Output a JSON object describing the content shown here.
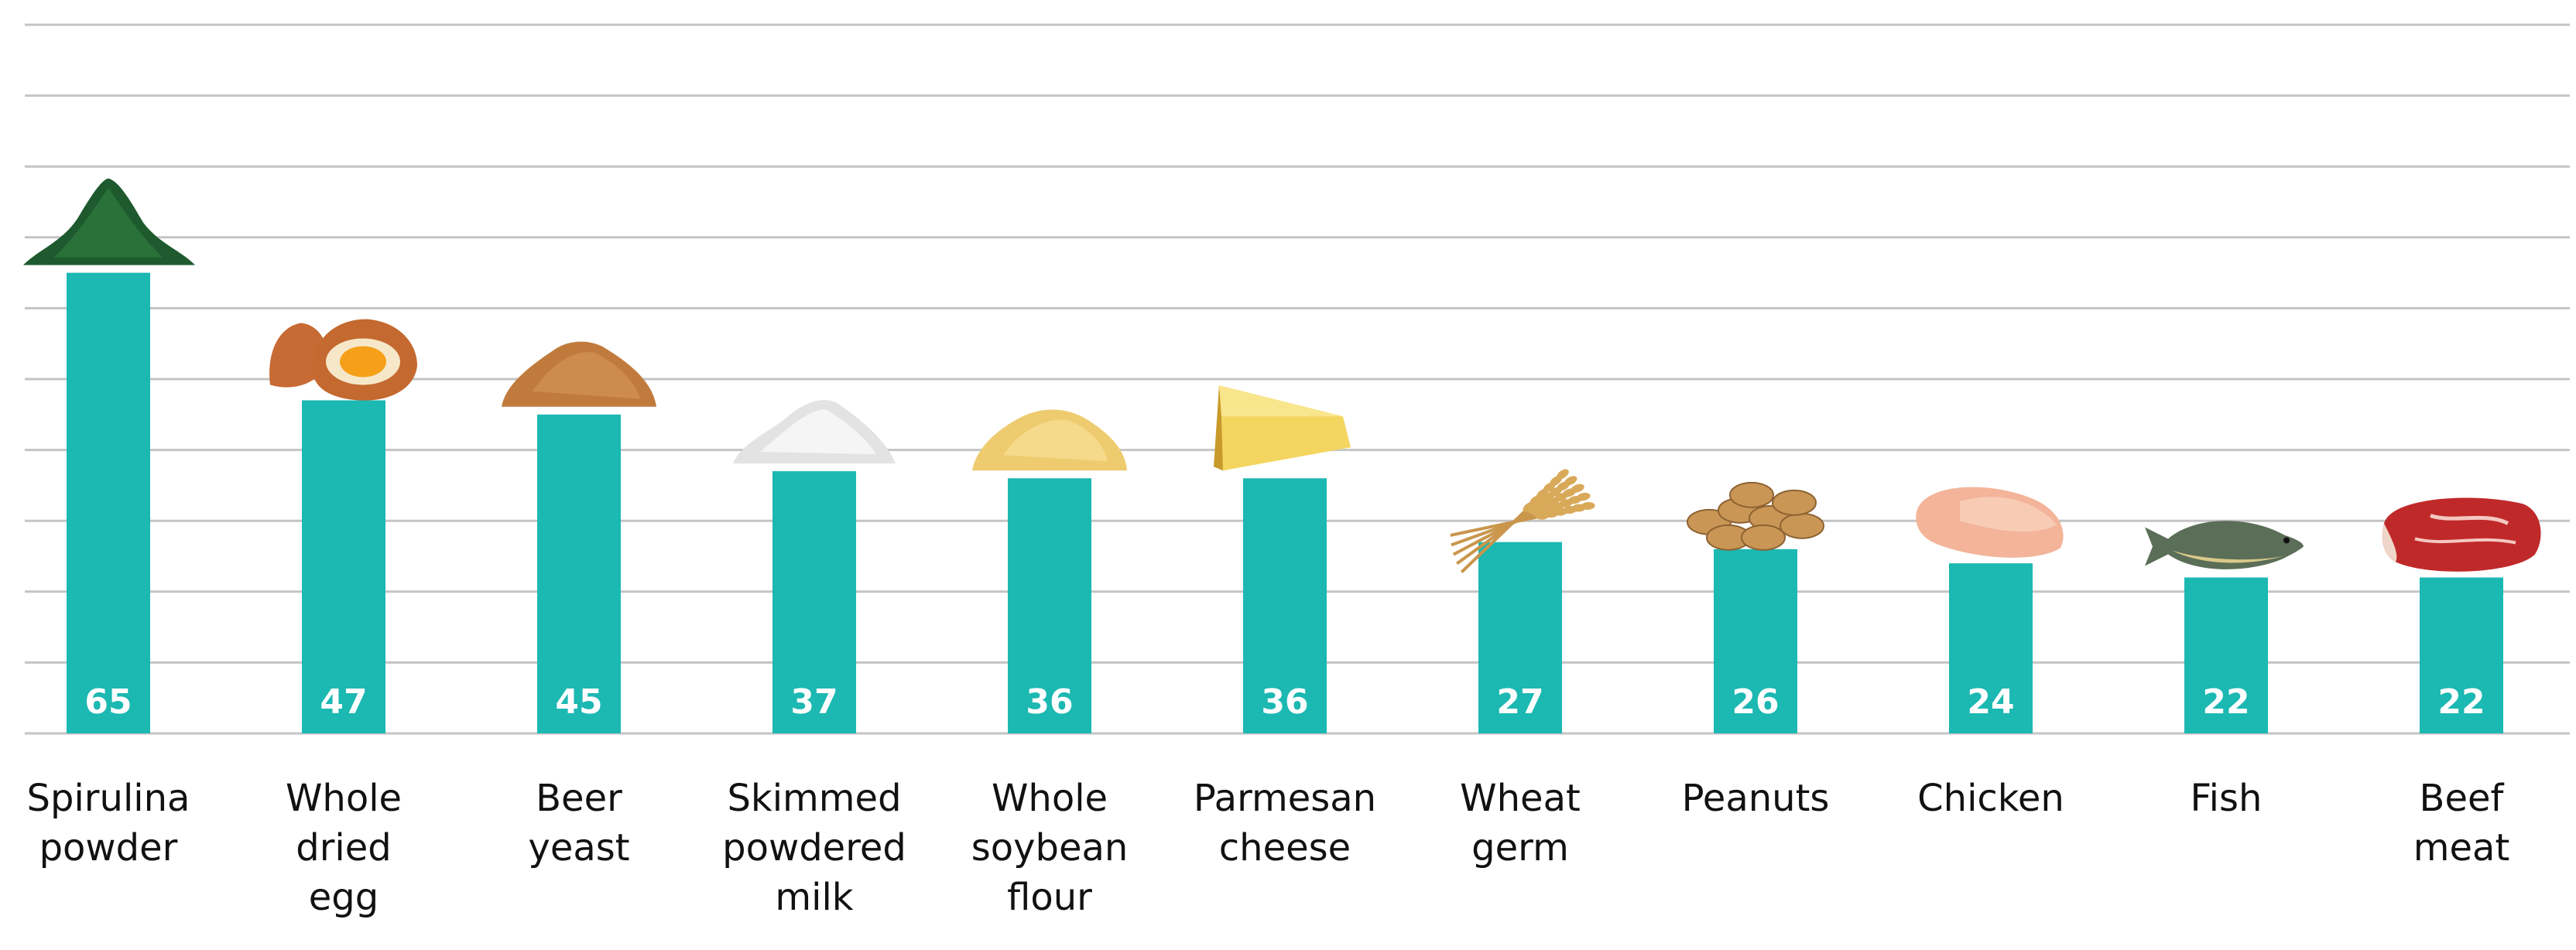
{
  "chart_data": {
    "type": "bar",
    "categories": [
      [
        "Spirulina",
        "powder"
      ],
      [
        "Whole",
        "dried",
        "egg"
      ],
      [
        "Beer",
        "yeast"
      ],
      [
        "Skimmed",
        "powdered",
        "milk"
      ],
      [
        "Whole",
        "soybean",
        "flour"
      ],
      [
        "Parmesan",
        "cheese"
      ],
      [
        "Wheat",
        "germ"
      ],
      [
        "Peanuts"
      ],
      [
        "Chicken"
      ],
      [
        "Fish"
      ],
      [
        "Beef",
        "meat"
      ]
    ],
    "values": [
      65,
      47,
      45,
      37,
      36,
      36,
      27,
      26,
      24,
      22,
      22
    ],
    "value_labels": [
      "65",
      "47",
      "45",
      "37",
      "36",
      "36",
      "27",
      "26",
      "24",
      "22",
      "22"
    ],
    "ylim": [
      0,
      100
    ],
    "grid": true,
    "bar_color": "#1cb8b2",
    "grid_color": "#c4c4c4",
    "icons": [
      "spirulina-powder-pile-icon",
      "cracked-egg-icon",
      "beer-yeast-powder-pile-icon",
      "white-powder-pile-icon",
      "soybean-flour-pile-icon",
      "parmesan-wedge-icon",
      "wheat-ears-icon",
      "peanuts-icon",
      "chicken-breast-icon",
      "fish-icon",
      "beef-steak-icon"
    ]
  }
}
